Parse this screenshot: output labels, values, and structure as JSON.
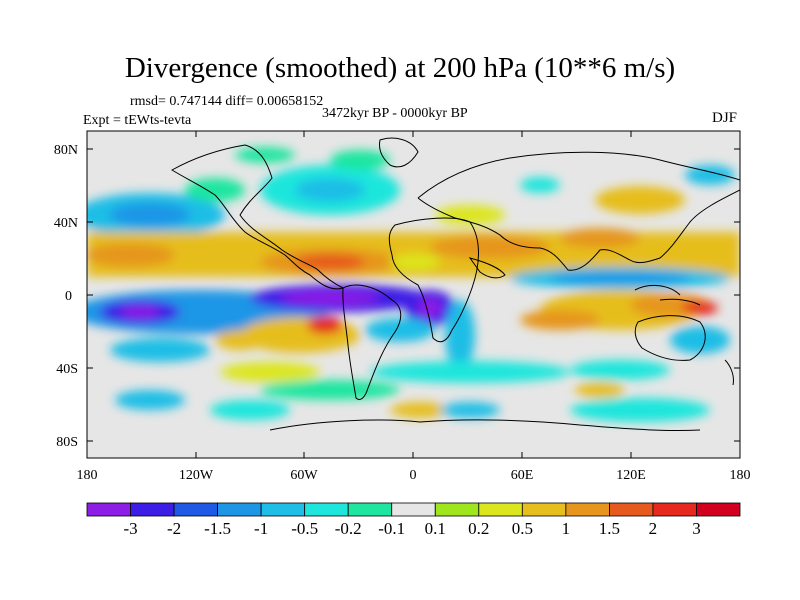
{
  "map": {
    "title": "Divergence (smoothed) at 200 hPa (10**6 m/s)",
    "stats": "rmsd= 0.747144 diff= 0.00658152",
    "period": "3472kyr BP - 0000kyr BP",
    "experiment": "Expt = tEWts-tevta",
    "season": "DJF",
    "lat_ticks": [
      "80N",
      "40N",
      "0",
      "40S",
      "80S"
    ],
    "lon_ticks": [
      "180",
      "120W",
      "60W",
      "0",
      "60E",
      "120E",
      "180"
    ]
  },
  "colorbar": {
    "labels": [
      "-3",
      "-2",
      "-1.5",
      "-1",
      "-0.5",
      "-0.2",
      "-0.1",
      "0.1",
      "0.2",
      "0.5",
      "1",
      "1.5",
      "2",
      "3"
    ],
    "colors": [
      "#8c1ee6",
      "#3c1ee6",
      "#1e5ae6",
      "#1e96e6",
      "#1ebee6",
      "#1ee6dc",
      "#1ee6a0",
      "#e6e6e6",
      "#a0e61e",
      "#dce61e",
      "#e6be1e",
      "#e6961e",
      "#e65a1e",
      "#e6281e",
      "#d2001e"
    ]
  }
}
